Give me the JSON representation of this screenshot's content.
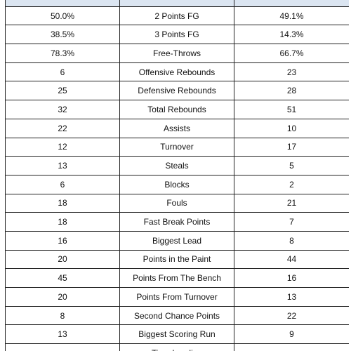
{
  "table": {
    "rows": [
      [
        "50.0%",
        "2 Points FG",
        "49.1%"
      ],
      [
        "38.5%",
        "3 Points FG",
        "14.3%"
      ],
      [
        "78.3%",
        "Free-Throws",
        "66.7%"
      ],
      [
        "6",
        "Offensive Rebounds",
        "23"
      ],
      [
        "25",
        "Defensive Rebounds",
        "28"
      ],
      [
        "32",
        "Total Rebounds",
        "51"
      ],
      [
        "22",
        "Assists",
        "10"
      ],
      [
        "12",
        "Turnover",
        "17"
      ],
      [
        "13",
        "Steals",
        "5"
      ],
      [
        "6",
        "Blocks",
        "2"
      ],
      [
        "18",
        "Fouls",
        "21"
      ],
      [
        "18",
        "Fast Break Points",
        "7"
      ],
      [
        "16",
        "Biggest Lead",
        "8"
      ],
      [
        "20",
        "Points in the Paint",
        "44"
      ],
      [
        "45",
        "Points From The Bench",
        "16"
      ],
      [
        "20",
        "Points From Turnover",
        "13"
      ],
      [
        "8",
        "Second Chance Points",
        "22"
      ],
      [
        "13",
        "Biggest Scoring Run",
        "9"
      ]
    ],
    "partial_row_label": "Time Leading"
  }
}
